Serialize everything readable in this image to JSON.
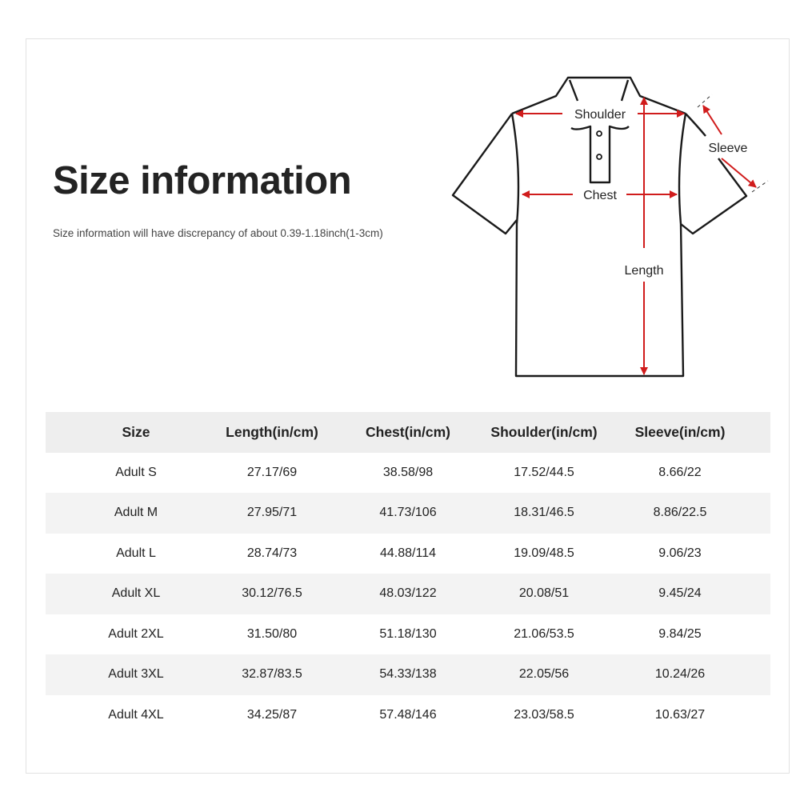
{
  "title": "Size information",
  "note": "Size information will have discrepancy of about 0.39-1.18inch(1-3cm)",
  "diagram": {
    "labels": {
      "shoulder": "Shoulder",
      "sleeve": "Sleeve",
      "chest": "Chest",
      "length": "Length"
    },
    "arrow_color": "#d01c1c"
  },
  "table": {
    "headers": [
      "Size",
      "Length(in/cm)",
      "Chest(in/cm)",
      "Shoulder(in/cm)",
      "Sleeve(in/cm)"
    ],
    "rows": [
      [
        "Adult S",
        "27.17/69",
        "38.58/98",
        "17.52/44.5",
        "8.66/22"
      ],
      [
        "Adult M",
        "27.95/71",
        "41.73/106",
        "18.31/46.5",
        "8.86/22.5"
      ],
      [
        "Adult L",
        "28.74/73",
        "44.88/114",
        "19.09/48.5",
        "9.06/23"
      ],
      [
        "Adult XL",
        "30.12/76.5",
        "48.03/122",
        "20.08/51",
        "9.45/24"
      ],
      [
        "Adult 2XL",
        "31.50/80",
        "51.18/130",
        "21.06/53.5",
        "9.84/25"
      ],
      [
        "Adult 3XL",
        "32.87/83.5",
        "54.33/138",
        "22.05/56",
        "10.24/26"
      ],
      [
        "Adult 4XL",
        "34.25/87",
        "57.48/146",
        "23.03/58.5",
        "10.63/27"
      ]
    ]
  }
}
